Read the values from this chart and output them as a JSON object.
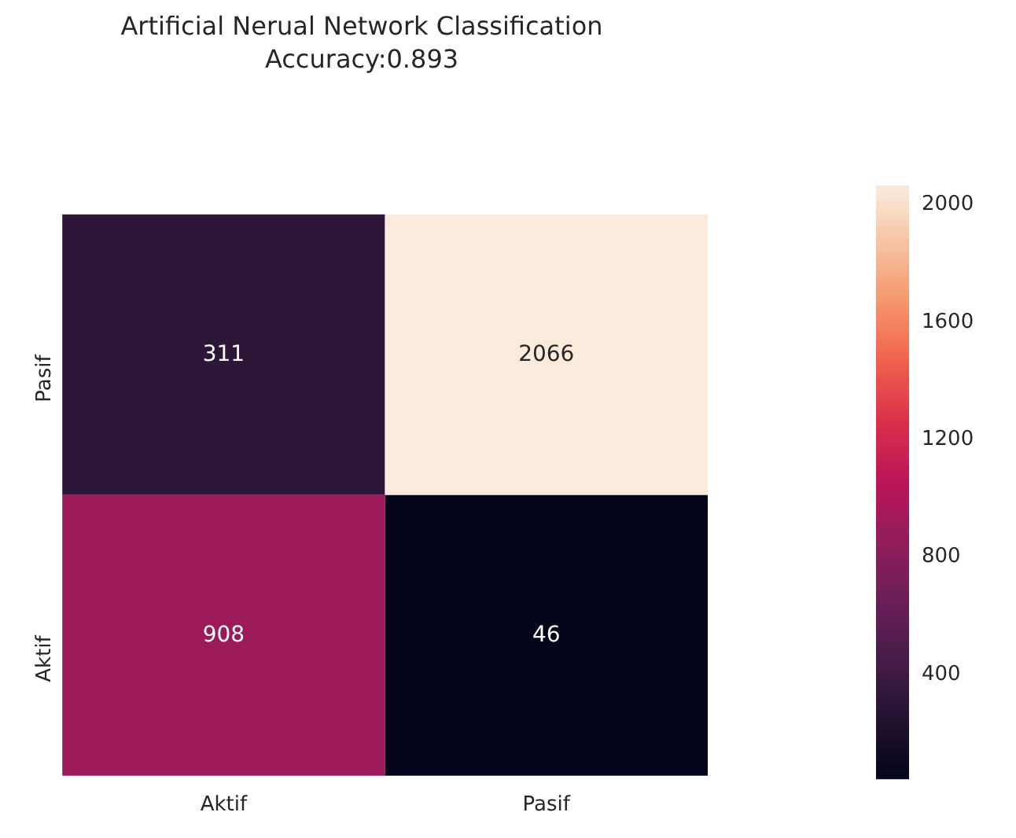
{
  "chart_data": {
    "type": "heatmap",
    "title": "Artificial Nerual Network Classification",
    "subtitle": "Accuracy:0.893",
    "categories": [
      "Aktif",
      "Pasif"
    ],
    "y_categories": [
      "Pasif",
      "Aktif"
    ],
    "cells": [
      [
        311,
        2066
      ],
      [
        908,
        46
      ]
    ],
    "data_labels": true,
    "clim": [
      46,
      2066
    ],
    "cticks": [
      400,
      800,
      1200,
      1600,
      2000
    ]
  }
}
